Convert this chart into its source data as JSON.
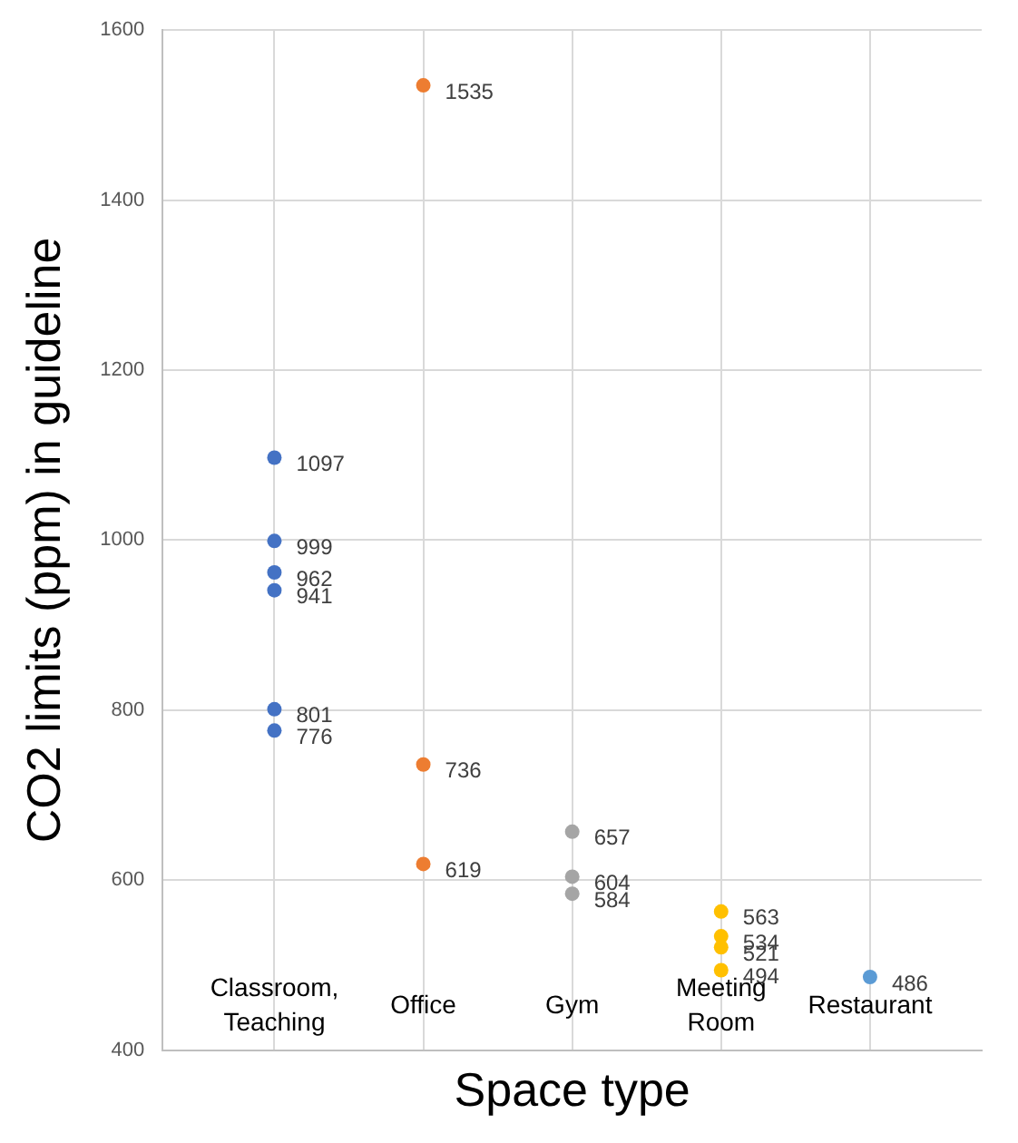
{
  "chart_data": {
    "type": "scatter",
    "xlabel": "Space type",
    "ylabel": "CO2 limits (ppm) in guideline",
    "categories": [
      "Classroom, Teaching",
      "Office",
      "Gym",
      "Meeting Room",
      "Restaurant"
    ],
    "series": [
      {
        "color": "#4472c4",
        "x": [
          "Classroom, Teaching",
          "Classroom, Teaching",
          "Classroom, Teaching",
          "Classroom, Teaching",
          "Classroom, Teaching",
          "Classroom, Teaching"
        ],
        "values": [
          1097,
          999,
          962,
          941,
          801,
          776
        ]
      },
      {
        "color": "#ed7d31",
        "x": [
          "Office",
          "Office",
          "Office"
        ],
        "values": [
          1535,
          736,
          619
        ]
      },
      {
        "color": "#a5a5a5",
        "x": [
          "Gym",
          "Gym",
          "Gym"
        ],
        "values": [
          657,
          604,
          584
        ]
      },
      {
        "color": "#ffc000",
        "x": [
          "Meeting Room",
          "Meeting Room",
          "Meeting Room",
          "Meeting Room"
        ],
        "values": [
          563,
          534,
          521,
          494
        ]
      },
      {
        "color": "#5b9bd5",
        "x": [
          "Restaurant"
        ],
        "values": [
          486
        ]
      }
    ],
    "ylim": [
      400,
      1600
    ],
    "yticks": [
      400,
      600,
      800,
      1000,
      1200,
      1400,
      1600
    ],
    "grid": true,
    "legend": false,
    "marker": "circle",
    "data_labels": true
  }
}
